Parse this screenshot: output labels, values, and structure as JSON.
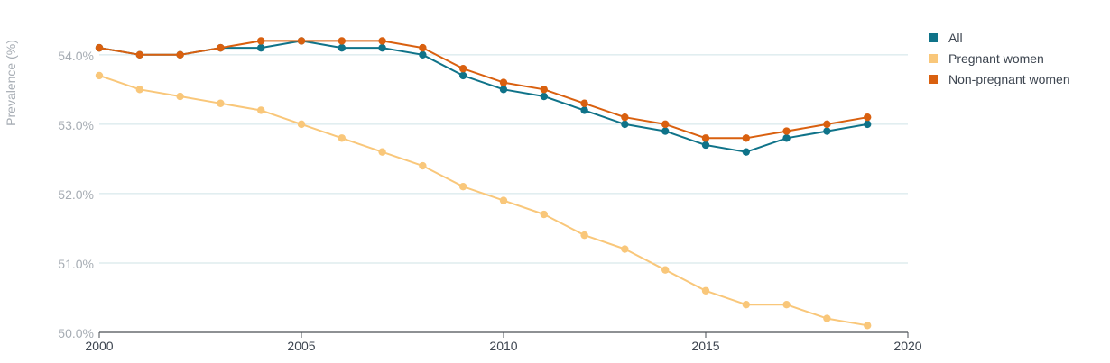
{
  "chart_data": {
    "type": "line",
    "xlabel": "",
    "ylabel": "Prevalence (%)",
    "xlim": [
      2000,
      2020
    ],
    "ylim": [
      50.0,
      54.4
    ],
    "x_ticks": [
      2000,
      2005,
      2010,
      2015,
      2020
    ],
    "x_tick_labels": [
      "2000",
      "2005",
      "2010",
      "2015",
      "2020"
    ],
    "y_ticks": [
      50.0,
      51.0,
      52.0,
      53.0,
      54.0
    ],
    "y_tick_labels": [
      "50.0%",
      "51.0%",
      "52.0%",
      "53.0%",
      "54.0%"
    ],
    "grid": "horizontal",
    "legend_position": "top-right",
    "x": [
      2000,
      2001,
      2002,
      2003,
      2004,
      2005,
      2006,
      2007,
      2008,
      2009,
      2010,
      2011,
      2012,
      2013,
      2014,
      2015,
      2016,
      2017,
      2018,
      2019
    ],
    "series": [
      {
        "name": "Pregnant women",
        "color": "#f9c77a",
        "values": [
          53.7,
          53.5,
          53.4,
          53.3,
          53.2,
          53.0,
          52.8,
          52.6,
          52.4,
          52.1,
          51.9,
          51.7,
          51.4,
          51.2,
          50.9,
          50.6,
          50.4,
          50.4,
          50.2,
          50.1
        ]
      },
      {
        "name": "All",
        "color": "#0f7389",
        "values": [
          54.1,
          54.0,
          54.0,
          54.1,
          54.1,
          54.2,
          54.1,
          54.1,
          54.0,
          53.7,
          53.5,
          53.4,
          53.2,
          53.0,
          52.9,
          52.7,
          52.6,
          52.8,
          52.9,
          53.0
        ]
      },
      {
        "name": "Non-pregnant women",
        "color": "#d9600f",
        "values": [
          54.1,
          54.0,
          54.0,
          54.1,
          54.2,
          54.2,
          54.2,
          54.2,
          54.1,
          53.8,
          53.6,
          53.5,
          53.3,
          53.1,
          53.0,
          52.8,
          52.8,
          52.9,
          53.0,
          53.1
        ]
      }
    ],
    "legend": [
      {
        "name": "All",
        "color": "#0f7389"
      },
      {
        "name": "Pregnant women",
        "color": "#f9c77a"
      },
      {
        "name": "Non-pregnant women",
        "color": "#d9600f"
      }
    ]
  }
}
